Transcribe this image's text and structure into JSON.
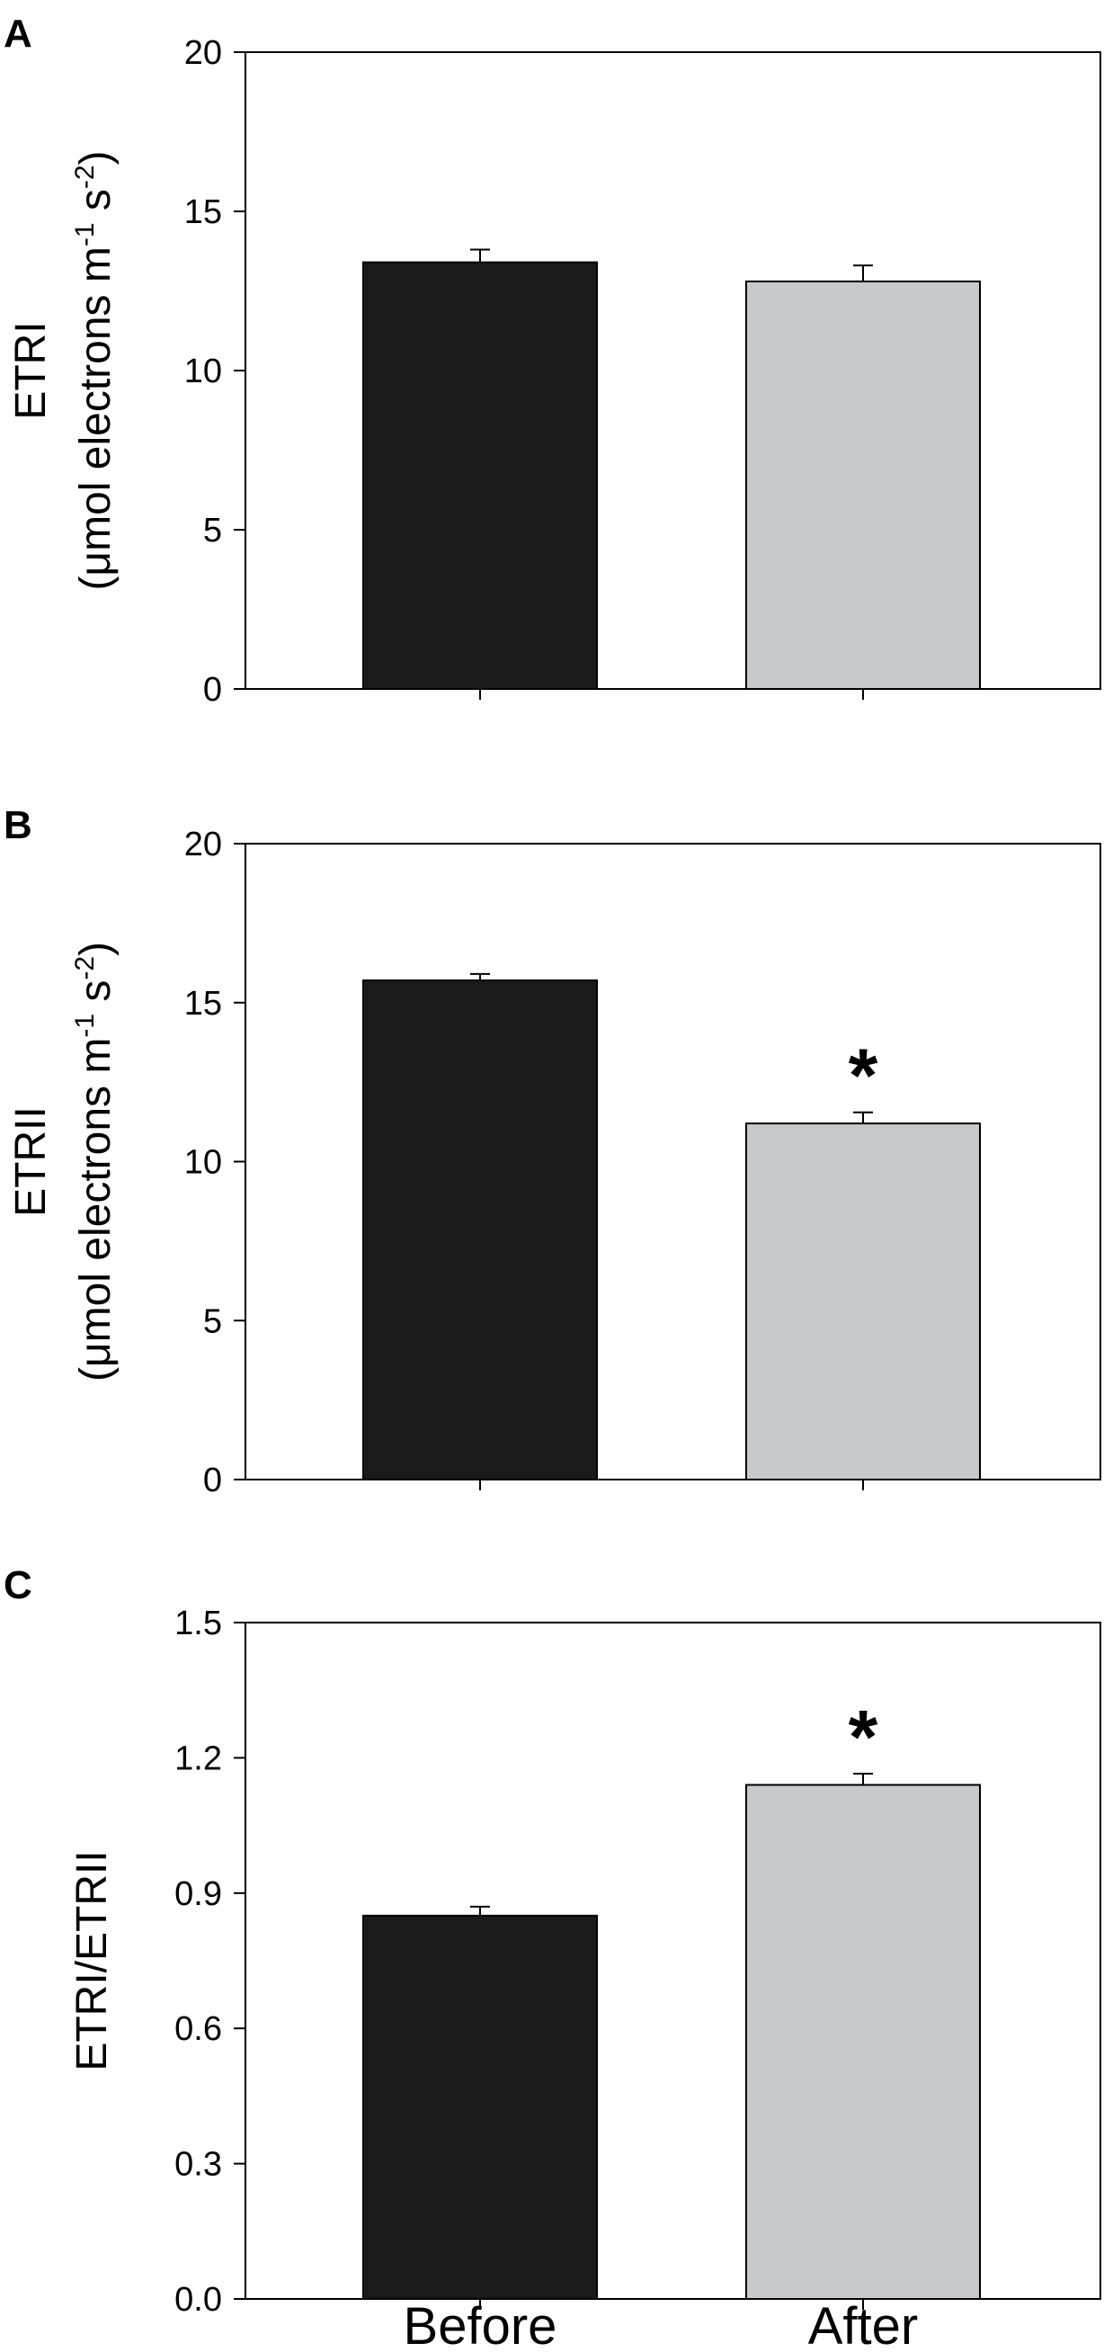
{
  "chart_data": [
    {
      "type": "bar",
      "panel_label": "A",
      "categories": [
        "Before",
        "After"
      ],
      "values": [
        13.4,
        12.8
      ],
      "errors": [
        0.4,
        0.5
      ],
      "colors": [
        "#1a1a1a",
        "#c8c9cb"
      ],
      "ylim": [
        0,
        20
      ],
      "yticks": [
        "0",
        "5",
        "10",
        "15",
        "20"
      ],
      "ylabel_line1": "ETRI",
      "ylabel_line2": {
        "pre": "(μmol electrons m",
        "sup1": "-1",
        "mid": " s",
        "sup2": "-2",
        "post": ")"
      },
      "significance": [
        "",
        ""
      ]
    },
    {
      "type": "bar",
      "panel_label": "B",
      "categories": [
        "Before",
        "After"
      ],
      "values": [
        15.7,
        11.2
      ],
      "errors": [
        0.2,
        0.35
      ],
      "colors": [
        "#1a1a1a",
        "#c8c9cb"
      ],
      "ylim": [
        0,
        20
      ],
      "yticks": [
        "0",
        "5",
        "10",
        "15",
        "20"
      ],
      "ylabel_line1": "ETRII",
      "ylabel_line2": {
        "pre": "(μmol electrons m",
        "sup1": "-1",
        "mid": " s",
        "sup2": "-2",
        "post": ")"
      },
      "significance": [
        "",
        "*"
      ]
    },
    {
      "type": "bar",
      "panel_label": "C",
      "categories": [
        "Before",
        "After"
      ],
      "values": [
        0.85,
        1.14
      ],
      "errors": [
        0.02,
        0.025
      ],
      "colors": [
        "#1a1a1a",
        "#c8c9cb"
      ],
      "ylim": [
        0,
        1.5
      ],
      "yticks": [
        "0.0",
        "0.3",
        "0.6",
        "0.9",
        "1.2",
        "1.5"
      ],
      "ylabel_line1": "ETRI/ETRII",
      "ylabel_line2": null,
      "significance": [
        "",
        "*"
      ]
    }
  ],
  "x_categories": [
    "Before",
    "After"
  ]
}
